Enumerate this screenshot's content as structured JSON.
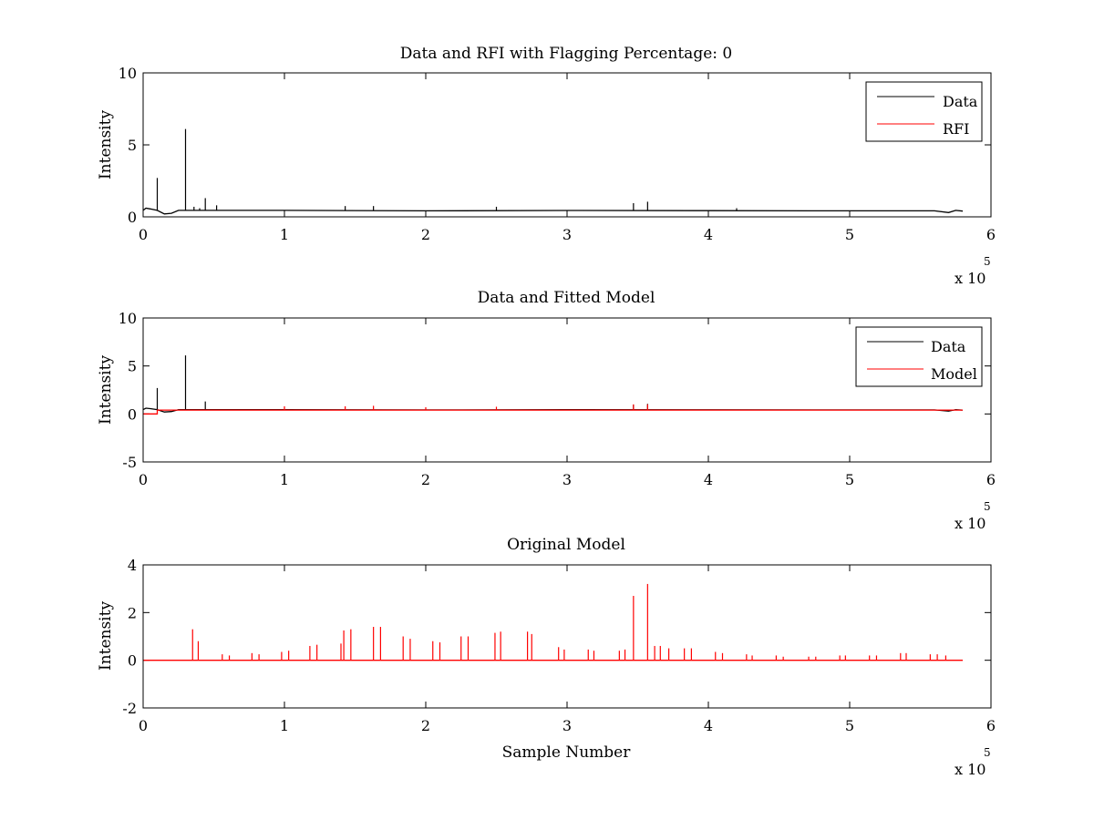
{
  "figure": {
    "background": "#ffffff",
    "data_color": "#000000",
    "rfi_color": "#ff0000"
  },
  "chart_data": [
    {
      "type": "line",
      "title": "Data and RFI with Flagging Percentage: 0",
      "xlabel": "",
      "ylabel": "Intensity",
      "xlim": [
        0,
        600000
      ],
      "ylim": [
        0,
        10
      ],
      "xticks": [
        "0",
        "1",
        "2",
        "3",
        "4",
        "5",
        "6"
      ],
      "yticks": [
        "0",
        "5",
        "10"
      ],
      "x_multiplier": "x 10",
      "x_multiplier_exp": "5",
      "legend_position": "top-right",
      "series": [
        {
          "name": "Data",
          "color": "#000000",
          "baseline": 0.45,
          "x": [
            0,
            2000,
            5000,
            10000,
            15000,
            20000,
            25000,
            30000,
            100000,
            200000,
            300000,
            400000,
            500000,
            560000,
            570000,
            575000,
            580000
          ],
          "y": [
            0.45,
            0.6,
            0.55,
            0.45,
            0.2,
            0.25,
            0.45,
            0.45,
            0.45,
            0.42,
            0.44,
            0.43,
            0.42,
            0.42,
            0.3,
            0.45,
            0.4
          ],
          "spikes": [
            {
              "x": 10000,
              "y": 2.7
            },
            {
              "x": 30000,
              "y": 6.1
            },
            {
              "x": 36000,
              "y": 0.7
            },
            {
              "x": 40000,
              "y": 0.6
            },
            {
              "x": 44000,
              "y": 1.3
            },
            {
              "x": 52000,
              "y": 0.8
            },
            {
              "x": 143000,
              "y": 0.75
            },
            {
              "x": 163000,
              "y": 0.75
            },
            {
              "x": 250000,
              "y": 0.7
            },
            {
              "x": 347000,
              "y": 0.95
            },
            {
              "x": 357000,
              "y": 1.05
            },
            {
              "x": 420000,
              "y": 0.6
            }
          ]
        },
        {
          "name": "RFI",
          "color": "#ff0000",
          "x": [],
          "y": []
        }
      ]
    },
    {
      "type": "line",
      "title": "Data and Fitted Model",
      "xlabel": "",
      "ylabel": "Intensity",
      "xlim": [
        0,
        600000
      ],
      "ylim": [
        -5,
        10
      ],
      "xticks": [
        "0",
        "1",
        "2",
        "3",
        "4",
        "5",
        "6"
      ],
      "yticks": [
        "-5",
        "0",
        "5",
        "10"
      ],
      "x_multiplier": "x 10",
      "x_multiplier_exp": "5",
      "legend_position": "top-right",
      "series": [
        {
          "name": "Data",
          "color": "#000000",
          "baseline": 0.45,
          "x": [
            0,
            2000,
            5000,
            10000,
            15000,
            20000,
            25000,
            30000,
            100000,
            200000,
            300000,
            400000,
            500000,
            560000,
            570000,
            575000,
            580000
          ],
          "y": [
            0.45,
            0.6,
            0.55,
            0.45,
            0.2,
            0.25,
            0.45,
            0.45,
            0.45,
            0.42,
            0.44,
            0.43,
            0.42,
            0.42,
            0.3,
            0.45,
            0.4
          ],
          "spikes": [
            {
              "x": 10000,
              "y": 2.7
            },
            {
              "x": 30000,
              "y": 6.1
            },
            {
              "x": 44000,
              "y": 1.3
            },
            {
              "x": 347000,
              "y": 0.95
            },
            {
              "x": 357000,
              "y": 1.05
            }
          ]
        },
        {
          "name": "Model",
          "color": "#ff0000",
          "baseline": 0.4,
          "x": [
            0,
            10000,
            10000,
            580000
          ],
          "y": [
            0.0,
            0.0,
            0.4,
            0.4
          ],
          "spikes": [
            {
              "x": 100000,
              "y": 0.8
            },
            {
              "x": 143000,
              "y": 0.8
            },
            {
              "x": 163000,
              "y": 0.85
            },
            {
              "x": 200000,
              "y": 0.7
            },
            {
              "x": 250000,
              "y": 0.75
            },
            {
              "x": 347000,
              "y": 1.0
            },
            {
              "x": 357000,
              "y": 1.0
            }
          ]
        }
      ]
    },
    {
      "type": "line",
      "title": "Original Model",
      "xlabel": "Sample Number",
      "ylabel": "Intensity",
      "xlim": [
        0,
        600000
      ],
      "ylim": [
        -2,
        4
      ],
      "xticks": [
        "0",
        "1",
        "2",
        "3",
        "4",
        "5",
        "6"
      ],
      "yticks": [
        "-2",
        "0",
        "2",
        "4"
      ],
      "x_multiplier": "x 10",
      "x_multiplier_exp": "5",
      "series": [
        {
          "name": "",
          "color": "#ff0000",
          "baseline": 0.0,
          "x": [
            0,
            580000
          ],
          "y": [
            0.0,
            0.0
          ],
          "spikes": [
            {
              "x": 35000,
              "y": 1.3
            },
            {
              "x": 39000,
              "y": 0.8
            },
            {
              "x": 56000,
              "y": 0.25
            },
            {
              "x": 61000,
              "y": 0.2
            },
            {
              "x": 77000,
              "y": 0.3
            },
            {
              "x": 82000,
              "y": 0.25
            },
            {
              "x": 98000,
              "y": 0.35
            },
            {
              "x": 103000,
              "y": 0.4
            },
            {
              "x": 118000,
              "y": 0.6
            },
            {
              "x": 123000,
              "y": 0.65
            },
            {
              "x": 140000,
              "y": 0.7
            },
            {
              "x": 142000,
              "y": 1.25
            },
            {
              "x": 147000,
              "y": 1.3
            },
            {
              "x": 163000,
              "y": 1.4
            },
            {
              "x": 168000,
              "y": 1.4
            },
            {
              "x": 184000,
              "y": 1.0
            },
            {
              "x": 189000,
              "y": 0.9
            },
            {
              "x": 205000,
              "y": 0.8
            },
            {
              "x": 210000,
              "y": 0.75
            },
            {
              "x": 225000,
              "y": 1.0
            },
            {
              "x": 230000,
              "y": 1.0
            },
            {
              "x": 249000,
              "y": 1.15
            },
            {
              "x": 253000,
              "y": 1.2
            },
            {
              "x": 272000,
              "y": 1.2
            },
            {
              "x": 275000,
              "y": 1.1
            },
            {
              "x": 294000,
              "y": 0.55
            },
            {
              "x": 298000,
              "y": 0.45
            },
            {
              "x": 315000,
              "y": 0.45
            },
            {
              "x": 319000,
              "y": 0.4
            },
            {
              "x": 337000,
              "y": 0.4
            },
            {
              "x": 341000,
              "y": 0.45
            },
            {
              "x": 347000,
              "y": 2.7
            },
            {
              "x": 357000,
              "y": 3.2
            },
            {
              "x": 362000,
              "y": 0.6
            },
            {
              "x": 366000,
              "y": 0.6
            },
            {
              "x": 372000,
              "y": 0.5
            },
            {
              "x": 383000,
              "y": 0.5
            },
            {
              "x": 388000,
              "y": 0.5
            },
            {
              "x": 405000,
              "y": 0.35
            },
            {
              "x": 410000,
              "y": 0.3
            },
            {
              "x": 427000,
              "y": 0.25
            },
            {
              "x": 431000,
              "y": 0.2
            },
            {
              "x": 448000,
              "y": 0.2
            },
            {
              "x": 453000,
              "y": 0.15
            },
            {
              "x": 471000,
              "y": 0.15
            },
            {
              "x": 476000,
              "y": 0.15
            },
            {
              "x": 493000,
              "y": 0.2
            },
            {
              "x": 497000,
              "y": 0.2
            },
            {
              "x": 514000,
              "y": 0.2
            },
            {
              "x": 519000,
              "y": 0.2
            },
            {
              "x": 536000,
              "y": 0.3
            },
            {
              "x": 540000,
              "y": 0.3
            },
            {
              "x": 557000,
              "y": 0.25
            },
            {
              "x": 562000,
              "y": 0.25
            },
            {
              "x": 568000,
              "y": 0.2
            }
          ]
        }
      ]
    }
  ]
}
